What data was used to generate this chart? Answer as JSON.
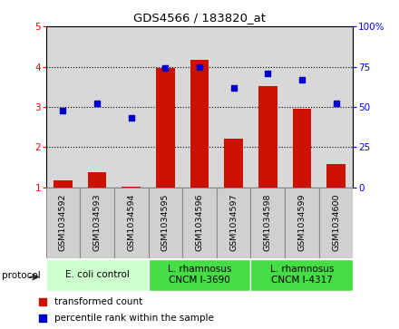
{
  "title": "GDS4566 / 183820_at",
  "samples": [
    "GSM1034592",
    "GSM1034593",
    "GSM1034594",
    "GSM1034595",
    "GSM1034596",
    "GSM1034597",
    "GSM1034598",
    "GSM1034599",
    "GSM1034600"
  ],
  "transformed_count": [
    1.18,
    1.37,
    1.03,
    3.97,
    4.17,
    2.22,
    3.52,
    2.95,
    1.58
  ],
  "percentile_rank": [
    48,
    52,
    43,
    74,
    75,
    62,
    71,
    67,
    52
  ],
  "ylim_left": [
    1,
    5
  ],
  "ylim_right": [
    0,
    100
  ],
  "yticks_left": [
    1,
    2,
    3,
    4,
    5
  ],
  "yticks_right": [
    0,
    25,
    50,
    75,
    100
  ],
  "bar_color": "#cc1100",
  "scatter_color": "#0000cc",
  "protocols": [
    {
      "label": "E. coli control",
      "start": 0,
      "end": 3,
      "color": "#ccffcc"
    },
    {
      "label": "L. rhamnosus\nCNCM I-3690",
      "start": 3,
      "end": 6,
      "color": "#44dd44"
    },
    {
      "label": "L. rhamnosus\nCNCM I-4317",
      "start": 6,
      "end": 9,
      "color": "#44dd44"
    }
  ],
  "legend_bar_label": "transformed count",
  "legend_scatter_label": "percentile rank within the sample",
  "protocol_label": "protocol",
  "background_color": "#ffffff",
  "panel_bg": "#d8d8d8",
  "sample_box_bg": "#d0d0d0",
  "sample_box_edge": "#888888"
}
